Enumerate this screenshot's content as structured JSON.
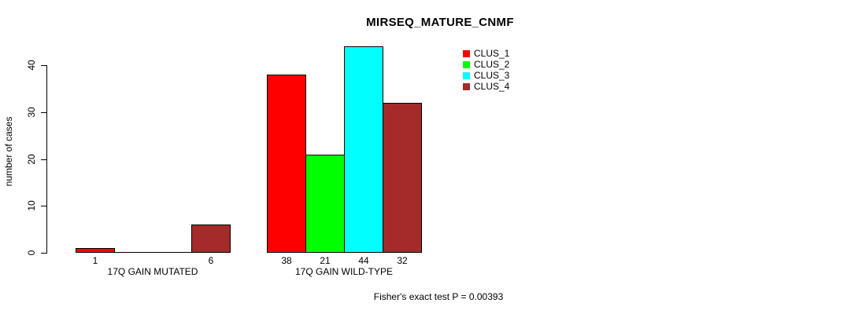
{
  "chart_data": {
    "type": "bar",
    "title": "MIRSEQ_MATURE_CNMF",
    "xlabel": "",
    "ylabel": "number of cases",
    "ylim": [
      0,
      44
    ],
    "yticks": [
      0,
      10,
      20,
      30,
      40
    ],
    "grid": false,
    "legend_position": "top-right",
    "bar_border_color": "#000000",
    "categories": [
      "17Q GAIN MUTATED",
      "17Q GAIN WILD-TYPE"
    ],
    "series": [
      {
        "name": "CLUS_1",
        "color": "#FF0000",
        "values": [
          1,
          38
        ]
      },
      {
        "name": "CLUS_2",
        "color": "#00FF00",
        "values": [
          0,
          21
        ]
      },
      {
        "name": "CLUS_3",
        "color": "#00FFFF",
        "values": [
          0,
          44
        ]
      },
      {
        "name": "CLUS_4",
        "color": "#A52A2A",
        "values": [
          6,
          32
        ]
      }
    ],
    "value_labels_shown_for_nonzero_bars": true,
    "footnote": "Fisher's exact test P = 0.00393"
  }
}
